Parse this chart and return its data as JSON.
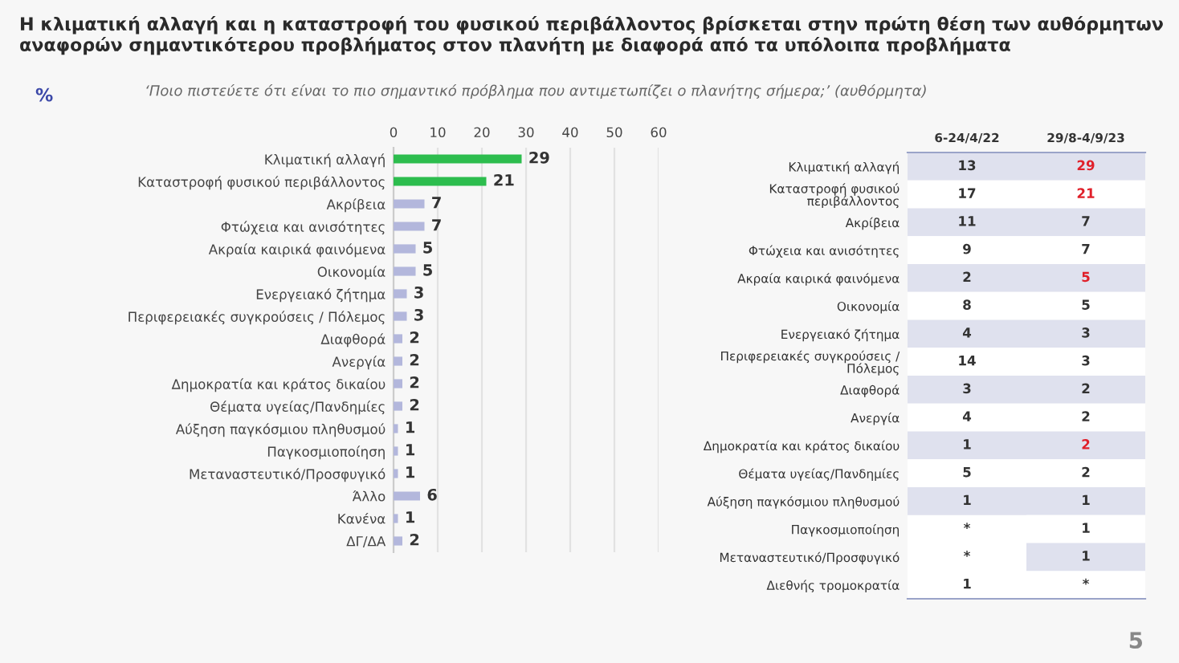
{
  "chart_data": [
    {
      "type": "bar",
      "orientation": "horizontal",
      "title": "Η κλιματική αλλαγή και η καταστροφή του φυσικού περιβάλλοντος βρίσκεται στην πρώτη θέση των αυθόρμητων αναφορών σημαντικότερου προβλήματος στον πλανήτη με διαφορά από τα υπόλοιπα προβλήματα",
      "subtitle": "‘Ποιο πιστεύετε ότι είναι το πιο σημαντικό πρόβλημα που αντιμετωπίζει ο πλανήτης σήμερα;’ (αυθόρμητα)",
      "annotations": [
        "%",
        "5"
      ],
      "categories": [
        "Κλιματική αλλαγή",
        "Καταστροφή φυσικού περιβάλλοντος",
        "Ακρίβεια",
        "Φτώχεια και ανισότητες",
        "Ακραία καιρικά φαινόμενα",
        "Οικονομία",
        "Ενεργειακό ζήτημα",
        "Περιφερειακές συγκρούσεις / Πόλεμος",
        "Διαφθορά",
        "Ανεργία",
        "Δημοκρατία και κράτος δικαίου",
        "Θέματα υγείας/Πανδημίες",
        "Αύξηση παγκόσμιου πληθυσμού",
        "Παγκοσμιοποίηση",
        "Μεταναστευτικό/Προσφυγικό",
        "Άλλο",
        "Κανένα",
        "ΔΓ/ΔΑ"
      ],
      "values": [
        29,
        21,
        7,
        7,
        5,
        5,
        3,
        3,
        2,
        2,
        2,
        2,
        1,
        1,
        1,
        6,
        1,
        2
      ],
      "colors": [
        "#2dbd4e",
        "#2dbd4e",
        "#b3b7dc",
        "#b3b7dc",
        "#b3b7dc",
        "#b3b7dc",
        "#b3b7dc",
        "#b3b7dc",
        "#b3b7dc",
        "#b3b7dc",
        "#b3b7dc",
        "#b3b7dc",
        "#b3b7dc",
        "#b3b7dc",
        "#b3b7dc",
        "#b3b7dc",
        "#b3b7dc",
        "#b3b7dc"
      ],
      "xlim": [
        0,
        60
      ],
      "xticks": [
        0,
        10,
        20,
        30,
        40,
        50,
        60
      ],
      "grid": "x",
      "data_labels": true
    },
    {
      "type": "heatmap",
      "categories": [
        "6-24/4/22",
        "29/8-4/9/23"
      ],
      "y_categories": [
        "Κλιματική αλλαγή",
        "Καταστροφή φυσικού\nπεριβάλλοντος",
        "Ακρίβεια",
        "Φτώχεια και ανισότητες",
        "Ακραία καιρικά φαινόμενα",
        "Οικονομία",
        "Ενεργειακό ζήτημα",
        "Περιφερειακές συγκρούσεις /\nΠόλεμος",
        "Διαφθορά",
        "Ανεργία",
        "Δημοκρατία και κράτος δικαίου",
        "Θέματα υγείας/Πανδημίες",
        "Αύξηση παγκόσμιου πληθυσμού",
        "Παγκοσμιοποίηση",
        "Μεταναστευτικό/Προσφυγικό",
        "Διεθνής τρομοκρατία"
      ],
      "cells": [
        [
          13,
          29
        ],
        [
          17,
          21
        ],
        [
          11,
          7
        ],
        [
          9,
          7
        ],
        [
          2,
          5
        ],
        [
          8,
          5
        ],
        [
          4,
          3
        ],
        [
          14,
          3
        ],
        [
          3,
          2
        ],
        [
          4,
          2
        ],
        [
          1,
          2
        ],
        [
          5,
          2
        ],
        [
          1,
          1
        ],
        [
          null,
          1
        ],
        [
          null,
          1
        ],
        [
          1,
          null
        ]
      ],
      "cell_labels": [
        [
          "13",
          "29"
        ],
        [
          "17",
          "21"
        ],
        [
          "11",
          "7"
        ],
        [
          "9",
          "7"
        ],
        [
          "2",
          "5"
        ],
        [
          "8",
          "5"
        ],
        [
          "4",
          "3"
        ],
        [
          "14",
          "3"
        ],
        [
          "3",
          "2"
        ],
        [
          "4",
          "2"
        ],
        [
          "1",
          "2"
        ],
        [
          "5",
          "2"
        ],
        [
          "1",
          "1"
        ],
        [
          "*",
          "1"
        ],
        [
          "*",
          "1"
        ],
        [
          "1",
          "*"
        ]
      ]
    }
  ]
}
